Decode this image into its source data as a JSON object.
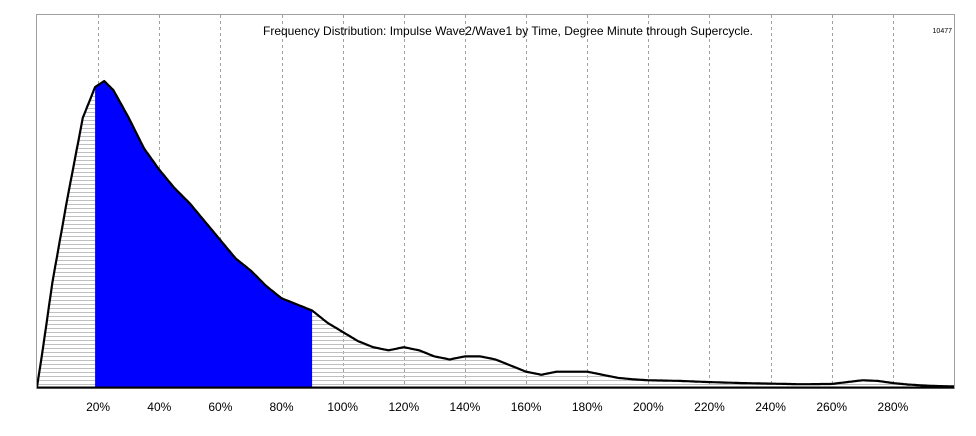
{
  "chart_data": {
    "type": "area",
    "title": "Frequency Distribution: Impulse Wave2/Wave1 by Time, Degree Minute through Supercycle.",
    "corner_label": "10477",
    "xlabel": "",
    "ylabel": "",
    "x_unit": "percent",
    "xlim": [
      0,
      300
    ],
    "ylim": [
      0,
      1
    ],
    "grid": "vertical-dashed",
    "tick_labels": [
      "20%",
      "40%",
      "60%",
      "80%",
      "100%",
      "120%",
      "140%",
      "160%",
      "180%",
      "200%",
      "220%",
      "240%",
      "260%",
      "280%"
    ],
    "tick_values": [
      20,
      40,
      60,
      80,
      100,
      120,
      140,
      160,
      180,
      200,
      220,
      240,
      260,
      280
    ],
    "highlight_range": [
      19,
      90
    ],
    "colors": {
      "highlight_fill": "#0000ff",
      "hatch": "#c0c0c0",
      "curve": "#000000",
      "grid": "#a0a0a0"
    },
    "x": [
      0,
      2,
      5,
      10,
      15,
      19,
      22,
      25,
      30,
      35,
      40,
      45,
      50,
      55,
      60,
      65,
      70,
      75,
      80,
      85,
      90,
      95,
      100,
      105,
      110,
      115,
      120,
      125,
      130,
      135,
      140,
      145,
      150,
      155,
      160,
      165,
      170,
      175,
      180,
      185,
      190,
      195,
      200,
      210,
      220,
      230,
      240,
      250,
      260,
      265,
      270,
      275,
      280,
      285,
      290,
      295,
      300
    ],
    "y": [
      0,
      0.13,
      0.34,
      0.62,
      0.88,
      0.98,
      1.0,
      0.97,
      0.88,
      0.78,
      0.71,
      0.65,
      0.6,
      0.54,
      0.48,
      0.42,
      0.38,
      0.33,
      0.29,
      0.27,
      0.25,
      0.21,
      0.18,
      0.15,
      0.13,
      0.12,
      0.13,
      0.12,
      0.1,
      0.09,
      0.1,
      0.1,
      0.09,
      0.07,
      0.05,
      0.04,
      0.05,
      0.05,
      0.05,
      0.04,
      0.03,
      0.025,
      0.022,
      0.02,
      0.016,
      0.013,
      0.011,
      0.009,
      0.01,
      0.016,
      0.022,
      0.02,
      0.013,
      0.008,
      0.005,
      0.003,
      0.002
    ]
  }
}
